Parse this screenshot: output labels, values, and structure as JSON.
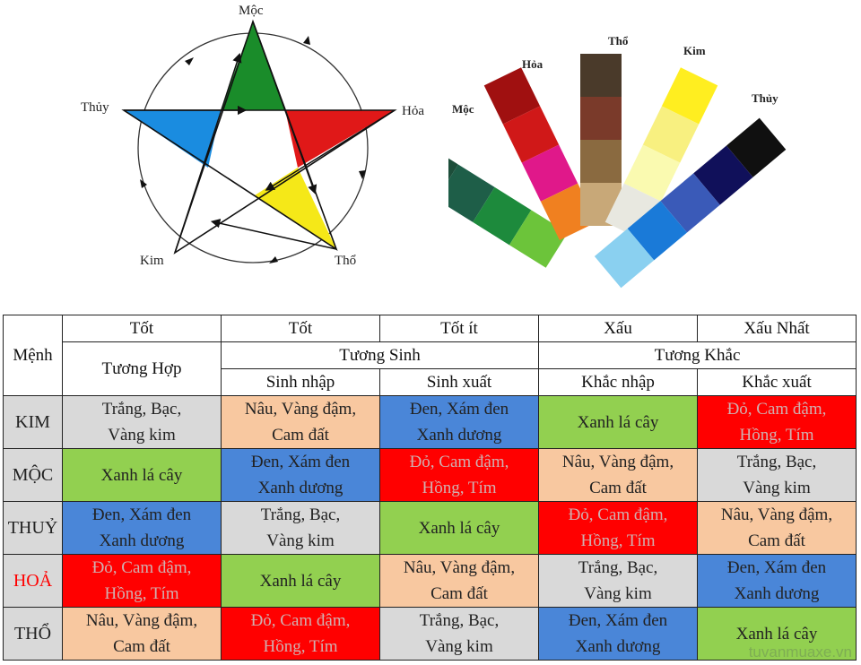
{
  "pentagram": {
    "labels": {
      "moc": "Mộc",
      "hoa": "Hỏa",
      "tho": "Thổ",
      "kim": "Kim",
      "thuy": "Thủy"
    },
    "colors": {
      "moc": "#1a8c2a",
      "hoa": "#e01818",
      "tho": "#f5e818",
      "thuy": "#1a8ce0",
      "kim": "#ffffff"
    }
  },
  "fan": {
    "labels": {
      "moc": "Mộc",
      "hoa": "Hỏa",
      "tho": "Thổ",
      "kim": "Kim",
      "thuy": "Thủy"
    },
    "strips": {
      "moc": [
        "#1d4e3a",
        "#1e5e48",
        "#1d8a3c",
        "#6cc43a"
      ],
      "hoa": [
        "#a01010",
        "#d01818",
        "#e0188a",
        "#f08020"
      ],
      "tho": [
        "#4a3a2a",
        "#7a3a2a",
        "#8a6a40",
        "#c8a878"
      ],
      "kim": [
        "#ffee20",
        "#f8f080",
        "#fafab0",
        "#e8e8e0"
      ],
      "thuy": [
        "#101010",
        "#10105a",
        "#3a5ab8",
        "#1a7ad8",
        "#8ad0f0"
      ]
    }
  },
  "table": {
    "header": {
      "menh": "Mệnh",
      "tot1": "Tốt",
      "tot2": "Tốt",
      "tot_it": "Tốt ít",
      "xau": "Xấu",
      "xau_nhat": "Xấu Nhất",
      "tuong_hop": "Tương Hợp",
      "tuong_sinh": "Tương Sinh",
      "tuong_khac": "Tương Khắc",
      "sinh_nhap": "Sinh nhập",
      "sinh_xuat": "Sinh xuất",
      "khac_nhap": "Khắc nhập",
      "khac_xuat": "Khắc xuất"
    },
    "rows": [
      {
        "menh": "KIM",
        "menh_color": "#222222",
        "cells": [
          {
            "text": [
              "Trắng, Bạc,",
              "Vàng kim"
            ],
            "bg": "#d9d9d9",
            "fg": "#222222"
          },
          {
            "text": [
              "Nâu, Vàng đậm,",
              "Cam đất"
            ],
            "bg": "#f8c8a0",
            "fg": "#222222"
          },
          {
            "text": [
              "Đen, Xám đen",
              "Xanh dương"
            ],
            "bg": "#4a86d8",
            "fg": "#222222"
          },
          {
            "text": [
              "Xanh lá cây"
            ],
            "bg": "#92d050",
            "fg": "#222222"
          },
          {
            "text": [
              "Đỏ, Cam đậm,",
              "Hồng, Tím"
            ],
            "bg": "#ff0000",
            "fg": "#d0b0b0"
          }
        ]
      },
      {
        "menh": "MỘC",
        "menh_color": "#222222",
        "cells": [
          {
            "text": [
              "Xanh lá cây"
            ],
            "bg": "#92d050",
            "fg": "#222222"
          },
          {
            "text": [
              "Đen, Xám đen",
              "Xanh dương"
            ],
            "bg": "#4a86d8",
            "fg": "#222222"
          },
          {
            "text": [
              "Đỏ, Cam đậm,",
              "Hồng, Tím"
            ],
            "bg": "#ff0000",
            "fg": "#d0b0b0"
          },
          {
            "text": [
              "Nâu, Vàng đậm,",
              "Cam đất"
            ],
            "bg": "#f8c8a0",
            "fg": "#222222"
          },
          {
            "text": [
              "Trắng, Bạc,",
              "Vàng kim"
            ],
            "bg": "#d9d9d9",
            "fg": "#222222"
          }
        ]
      },
      {
        "menh": "THUỶ",
        "menh_color": "#222222",
        "cells": [
          {
            "text": [
              "Đen, Xám đen",
              "Xanh dương"
            ],
            "bg": "#4a86d8",
            "fg": "#222222"
          },
          {
            "text": [
              "Trắng, Bạc,",
              "Vàng kim"
            ],
            "bg": "#d9d9d9",
            "fg": "#222222"
          },
          {
            "text": [
              "Xanh lá cây"
            ],
            "bg": "#92d050",
            "fg": "#222222"
          },
          {
            "text": [
              "Đỏ, Cam đậm,",
              "Hồng, Tím"
            ],
            "bg": "#ff0000",
            "fg": "#d0b0b0"
          },
          {
            "text": [
              "Nâu, Vàng đậm,",
              "Cam đất"
            ],
            "bg": "#f8c8a0",
            "fg": "#222222"
          }
        ]
      },
      {
        "menh": "HOẢ",
        "menh_color": "#ff0000",
        "cells": [
          {
            "text": [
              "Đỏ, Cam đậm,",
              "Hồng, Tím"
            ],
            "bg": "#ff0000",
            "fg": "#d0b0b0"
          },
          {
            "text": [
              "Xanh lá cây"
            ],
            "bg": "#92d050",
            "fg": "#222222"
          },
          {
            "text": [
              "Nâu, Vàng đậm,",
              "Cam đất"
            ],
            "bg": "#f8c8a0",
            "fg": "#222222"
          },
          {
            "text": [
              "Trắng, Bạc,",
              "Vàng kim"
            ],
            "bg": "#d9d9d9",
            "fg": "#222222"
          },
          {
            "text": [
              "Đen, Xám đen",
              "Xanh dương"
            ],
            "bg": "#4a86d8",
            "fg": "#222222"
          }
        ]
      },
      {
        "menh": "THỔ",
        "menh_color": "#222222",
        "cells": [
          {
            "text": [
              "Nâu, Vàng đậm,",
              "Cam đất"
            ],
            "bg": "#f8c8a0",
            "fg": "#222222"
          },
          {
            "text": [
              "Đỏ, Cam đậm,",
              "Hồng, Tím"
            ],
            "bg": "#ff0000",
            "fg": "#d0b0b0"
          },
          {
            "text": [
              "Trắng, Bạc,",
              "Vàng kim"
            ],
            "bg": "#d9d9d9",
            "fg": "#222222"
          },
          {
            "text": [
              "Đen, Xám đen",
              "Xanh dương"
            ],
            "bg": "#4a86d8",
            "fg": "#222222"
          },
          {
            "text": [
              "Xanh lá cây"
            ],
            "bg": "#92d050",
            "fg": "#222222"
          }
        ]
      }
    ]
  },
  "watermark": "tuvanmuaxe.vn"
}
